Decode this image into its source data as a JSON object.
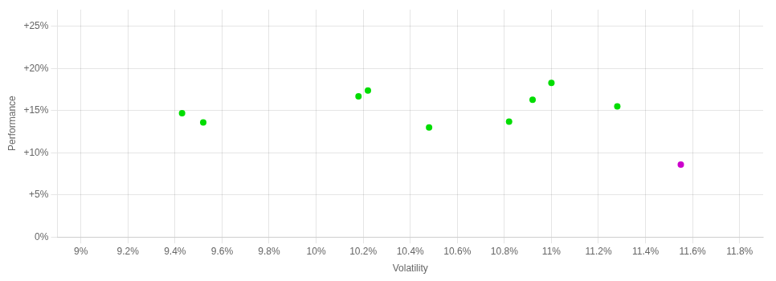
{
  "chart_data": {
    "type": "scatter",
    "xlabel": "Volatility",
    "ylabel": "Performance",
    "xlim": [
      0.089,
      0.119
    ],
    "ylim": [
      0.0,
      0.27
    ],
    "xticks": [
      {
        "value": 0.09,
        "label": "9%"
      },
      {
        "value": 0.092,
        "label": "9.2%"
      },
      {
        "value": 0.094,
        "label": "9.4%"
      },
      {
        "value": 0.096,
        "label": "9.6%"
      },
      {
        "value": 0.098,
        "label": "9.8%"
      },
      {
        "value": 0.1,
        "label": "10%"
      },
      {
        "value": 0.102,
        "label": "10.2%"
      },
      {
        "value": 0.104,
        "label": "10.4%"
      },
      {
        "value": 0.106,
        "label": "10.6%"
      },
      {
        "value": 0.108,
        "label": "10.8%"
      },
      {
        "value": 0.11,
        "label": "11%"
      },
      {
        "value": 0.112,
        "label": "11.2%"
      },
      {
        "value": 0.114,
        "label": "11.4%"
      },
      {
        "value": 0.116,
        "label": "11.6%"
      },
      {
        "value": 0.118,
        "label": "11.8%"
      }
    ],
    "yticks": [
      {
        "value": 0.0,
        "label": "0%"
      },
      {
        "value": 0.05,
        "label": "+5%"
      },
      {
        "value": 0.1,
        "label": "+10%"
      },
      {
        "value": 0.15,
        "label": "+15%"
      },
      {
        "value": 0.2,
        "label": "+20%"
      },
      {
        "value": 0.25,
        "label": "+25%"
      }
    ],
    "grid": true,
    "series": [
      {
        "color": "#00dd00",
        "x": [
          0.0943,
          0.0952,
          0.1018,
          0.1022,
          0.1048,
          0.1082,
          0.1092,
          0.11,
          0.1128
        ],
        "values": [
          0.147,
          0.136,
          0.167,
          0.174,
          0.13,
          0.137,
          0.163,
          0.183,
          0.155
        ]
      },
      {
        "color": "#cc00cc",
        "x": [
          0.1155
        ],
        "values": [
          0.086
        ]
      }
    ]
  }
}
